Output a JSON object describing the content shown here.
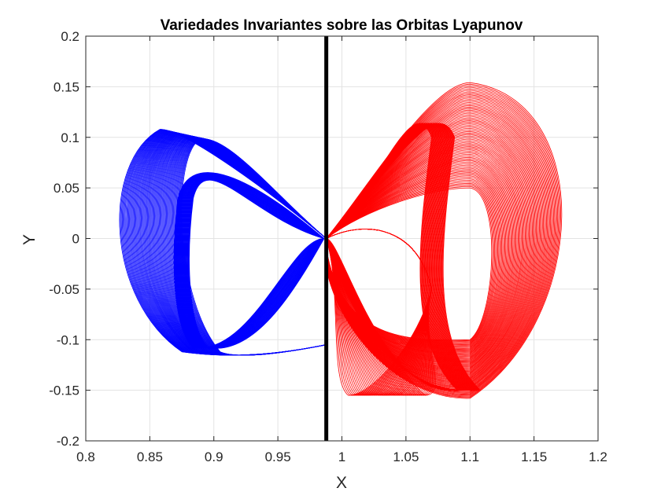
{
  "chart_data": {
    "type": "line",
    "title": "Variedades Invariantes sobre las Orbitas Lyapunov",
    "xlabel": "X",
    "ylabel": "Y",
    "xlim": [
      0.8,
      1.2
    ],
    "ylim": [
      -0.2,
      0.2
    ],
    "x_ticks": [
      0.8,
      0.85,
      0.9,
      0.95,
      1,
      1.05,
      1.1,
      1.15,
      1.2
    ],
    "y_ticks": [
      -0.2,
      -0.15,
      -0.1,
      -0.05,
      0,
      0.05,
      0.1,
      0.15,
      0.2
    ],
    "x_tick_labels": [
      "0.8",
      "0.85",
      "0.9",
      "0.95",
      "1",
      "1.05",
      "1.1",
      "1.15",
      "1.2"
    ],
    "y_tick_labels": [
      "-0.2",
      "-0.15",
      "-0.1",
      "-0.05",
      "0",
      "0.05",
      "0.1",
      "0.15",
      "0.2"
    ],
    "grid": true,
    "vertical_line": {
      "x": 0.9878,
      "color": "#000000"
    },
    "series": [
      {
        "color": "#0000ff",
        "description_side": "left",
        "family": {
          "apex_x": 0.9878,
          "apex_y": 0.0,
          "x_min": 0.817,
          "x_max": 0.9878,
          "y_min": -0.115,
          "y_max": 0.108,
          "lobe_left_x": 0.872,
          "lobe_right_x": 0.884,
          "curve_count": 70
        }
      },
      {
        "color": "#ff0000",
        "description_side": "right",
        "family": {
          "apex_x": 0.9878,
          "apex_y": 0.0,
          "x_min": 0.9878,
          "x_max": 1.193,
          "y_min": -0.158,
          "y_max": 0.154,
          "lobe_left_x": 1.06,
          "lobe_right_x": 1.078,
          "curve_count": 70
        }
      }
    ]
  }
}
